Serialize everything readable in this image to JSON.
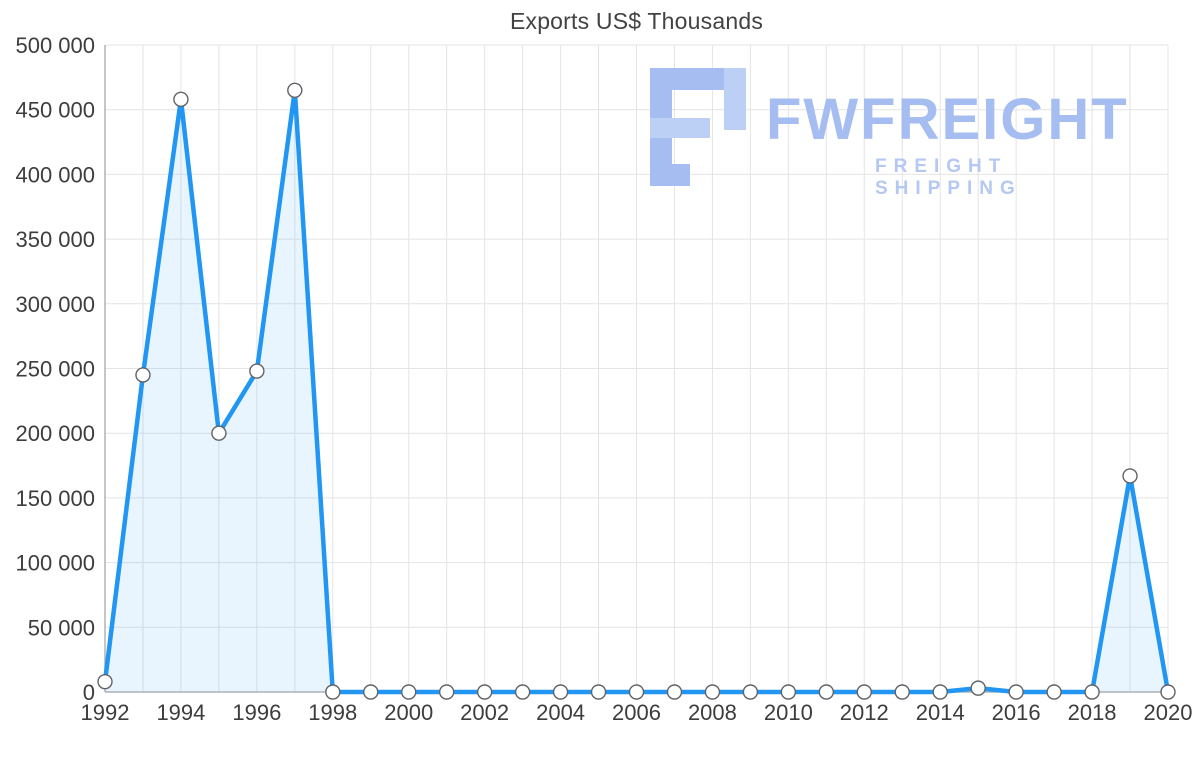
{
  "page": {
    "title": "Exports US$ Thousands"
  },
  "watermark": {
    "brand": "FWFREIGHT",
    "tagline": "FREIGHT SHIPPING",
    "icon": "fwfreight-f-mark",
    "color": "#a5bdf0"
  },
  "chart_data": {
    "type": "area",
    "title": "Exports US$ Thousands",
    "xlabel": "",
    "ylabel": "",
    "x": [
      1992,
      1993,
      1994,
      1995,
      1996,
      1997,
      1998,
      1999,
      2000,
      2001,
      2002,
      2003,
      2004,
      2005,
      2006,
      2007,
      2008,
      2009,
      2010,
      2011,
      2012,
      2013,
      2014,
      2015,
      2016,
      2017,
      2018,
      2019,
      2020
    ],
    "values": [
      8000,
      245000,
      458000,
      200000,
      248000,
      465000,
      0,
      0,
      0,
      0,
      0,
      0,
      0,
      0,
      0,
      0,
      0,
      0,
      0,
      0,
      0,
      0,
      0,
      3000,
      0,
      0,
      0,
      167000,
      0
    ],
    "ylim": [
      0,
      500000
    ],
    "yticks": [
      {
        "value": 0,
        "label": "0"
      },
      {
        "value": 50000,
        "label": "50 000"
      },
      {
        "value": 100000,
        "label": "100 000"
      },
      {
        "value": 150000,
        "label": "150 000"
      },
      {
        "value": 200000,
        "label": "200 000"
      },
      {
        "value": 250000,
        "label": "250 000"
      },
      {
        "value": 300000,
        "label": "300 000"
      },
      {
        "value": 350000,
        "label": "350 000"
      },
      {
        "value": 400000,
        "label": "400 000"
      },
      {
        "value": 450000,
        "label": "450 000"
      },
      {
        "value": 500000,
        "label": "500 000"
      }
    ],
    "xticks": [
      {
        "value": 1992,
        "label": "1992"
      },
      {
        "value": 1994,
        "label": "1994"
      },
      {
        "value": 1996,
        "label": "1996"
      },
      {
        "value": 1998,
        "label": "1998"
      },
      {
        "value": 2000,
        "label": "2000"
      },
      {
        "value": 2002,
        "label": "2002"
      },
      {
        "value": 2004,
        "label": "2004"
      },
      {
        "value": 2006,
        "label": "2006"
      },
      {
        "value": 2008,
        "label": "2008"
      },
      {
        "value": 2010,
        "label": "2010"
      },
      {
        "value": 2012,
        "label": "2012"
      },
      {
        "value": 2014,
        "label": "2014"
      },
      {
        "value": 2016,
        "label": "2016"
      },
      {
        "value": 2018,
        "label": "2018"
      },
      {
        "value": 2020,
        "label": "2020"
      }
    ],
    "grid": true,
    "legend_position": "none",
    "line_color": "#2196f3",
    "fill_color": "rgba(33,150,243,0.10)",
    "marker_fill": "#ffffff",
    "marker_stroke": "#5f6368",
    "grid_color": "#e4e4e4",
    "axis_color": "#b3b3b3",
    "tick_color": "#3d3d3d"
  }
}
